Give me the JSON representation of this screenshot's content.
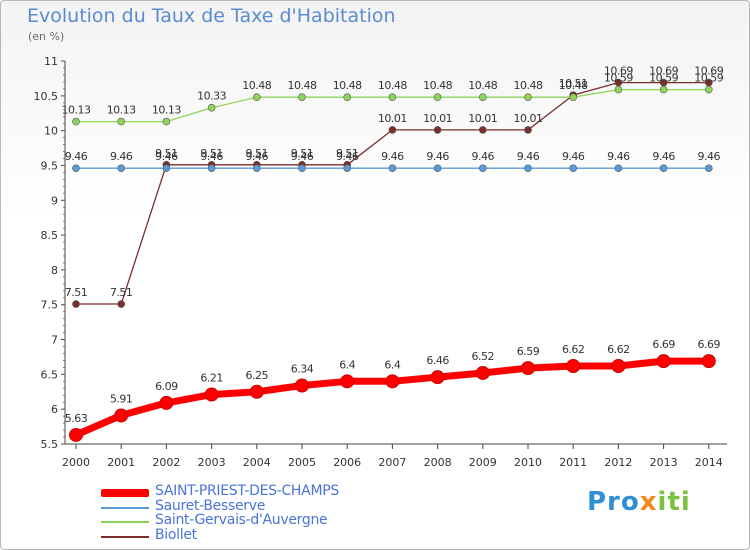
{
  "title": "Evolution du Taux de Taxe d'Habitation",
  "unit": "(en %)",
  "logo": {
    "part1": "Pro",
    "part2": "x",
    "part3": "iti"
  },
  "chart_data": {
    "type": "line",
    "x": [
      2000,
      2001,
      2002,
      2003,
      2004,
      2005,
      2006,
      2007,
      2008,
      2009,
      2010,
      2011,
      2012,
      2013,
      2014
    ],
    "ylim": [
      5.5,
      11
    ],
    "yticks": [
      "5.5",
      "6",
      "6.5",
      "7",
      "7.5",
      "8",
      "8.5",
      "9",
      "9.5",
      "10",
      "10.5",
      "11"
    ],
    "grid": false,
    "legend_position": "bottom",
    "series": [
      {
        "name": "SAINT-PRIEST-DES-CHAMPS",
        "color": "#ff0000",
        "values": [
          5.63,
          5.91,
          6.09,
          6.21,
          6.25,
          6.34,
          6.4,
          6.4,
          6.46,
          6.52,
          6.59,
          6.62,
          6.62,
          6.69,
          6.69
        ],
        "labels": [
          "5.63",
          "5.91",
          "6.09",
          "6.21",
          "6.25",
          "6.34",
          "6.4",
          "6.4",
          "6.46",
          "6.52",
          "6.59",
          "6.62",
          "6.62",
          "6.69",
          "6.69"
        ]
      },
      {
        "name": "Sauret-Besserve",
        "color": "#5b9bd5",
        "values": [
          9.46,
          9.46,
          9.46,
          9.46,
          9.46,
          9.46,
          9.46,
          9.46,
          9.46,
          9.46,
          9.46,
          9.46,
          9.46,
          9.46,
          9.46
        ],
        "labels": [
          "9.46",
          "9.46",
          "9.46",
          "9.46",
          "9.46",
          "9.46",
          "9.46",
          "9.46",
          "9.46",
          "9.46",
          "9.46",
          "9.46",
          "9.46",
          "9.46",
          "9.46"
        ]
      },
      {
        "name": "Saint-Gervais-d'Auvergne",
        "color": "#8ed45a",
        "values": [
          10.13,
          10.13,
          10.13,
          10.33,
          10.48,
          10.48,
          10.48,
          10.48,
          10.48,
          10.48,
          10.48,
          10.48,
          10.59,
          10.59,
          10.59
        ],
        "labels": [
          "10.13",
          "10.13",
          "10.13",
          "10.33",
          "10.48",
          "10.48",
          "10.48",
          "10.48",
          "10.48",
          "10.48",
          "10.48",
          "10.48",
          "10.59",
          "10.59",
          "10.59"
        ]
      },
      {
        "name": "Biollet",
        "color": "#7a2e2e",
        "values": [
          7.51,
          7.51,
          9.51,
          9.51,
          9.51,
          9.51,
          9.51,
          10.01,
          10.01,
          10.01,
          10.01,
          10.51,
          10.69,
          10.69,
          10.69
        ],
        "labels": [
          "7.51",
          "7.51",
          "9.51",
          "9.51",
          "9.51",
          "9.51",
          "9.51",
          "10.01",
          "10.01",
          "10.01",
          "10.01",
          "10.51",
          "10.69",
          "10.69",
          "10.69"
        ]
      }
    ]
  }
}
